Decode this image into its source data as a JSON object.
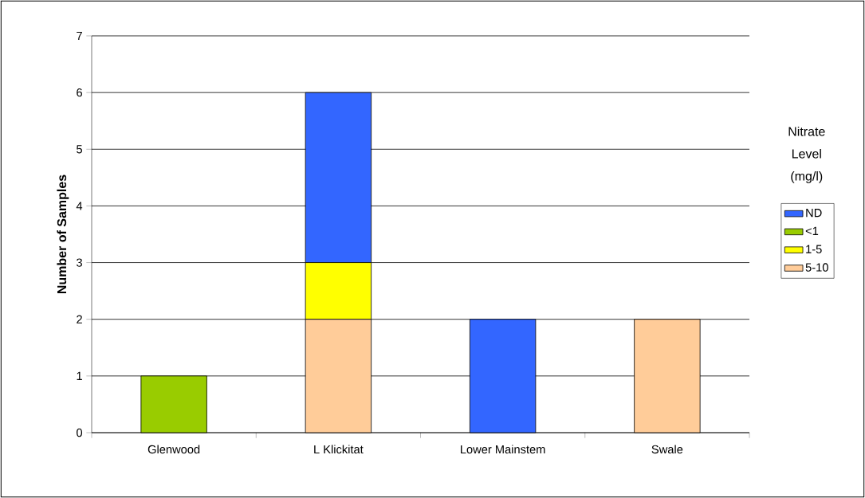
{
  "chart_data": {
    "type": "bar",
    "stacked": true,
    "ylabel": "Number of Samples",
    "legend_title": "Nitrate Level (mg/l)",
    "categories": [
      "Glenwood",
      "L Klickitat",
      "Lower Mainstem",
      "Swale"
    ],
    "series": [
      {
        "name": "5-10",
        "color": "#ffcc99",
        "values": [
          0,
          2,
          0,
          2
        ]
      },
      {
        "name": "1-5",
        "color": "#ffff00",
        "values": [
          0,
          1,
          0,
          0
        ]
      },
      {
        "name": "<1",
        "color": "#99cc00",
        "values": [
          1,
          0,
          0,
          0
        ]
      },
      {
        "name": "ND",
        "color": "#3366ff",
        "values": [
          0,
          3,
          2,
          0
        ]
      }
    ],
    "ylim": [
      0,
      7
    ],
    "yticks": [
      0,
      1,
      2,
      3,
      4,
      5,
      6,
      7
    ],
    "grid": "y",
    "legend": "right"
  }
}
